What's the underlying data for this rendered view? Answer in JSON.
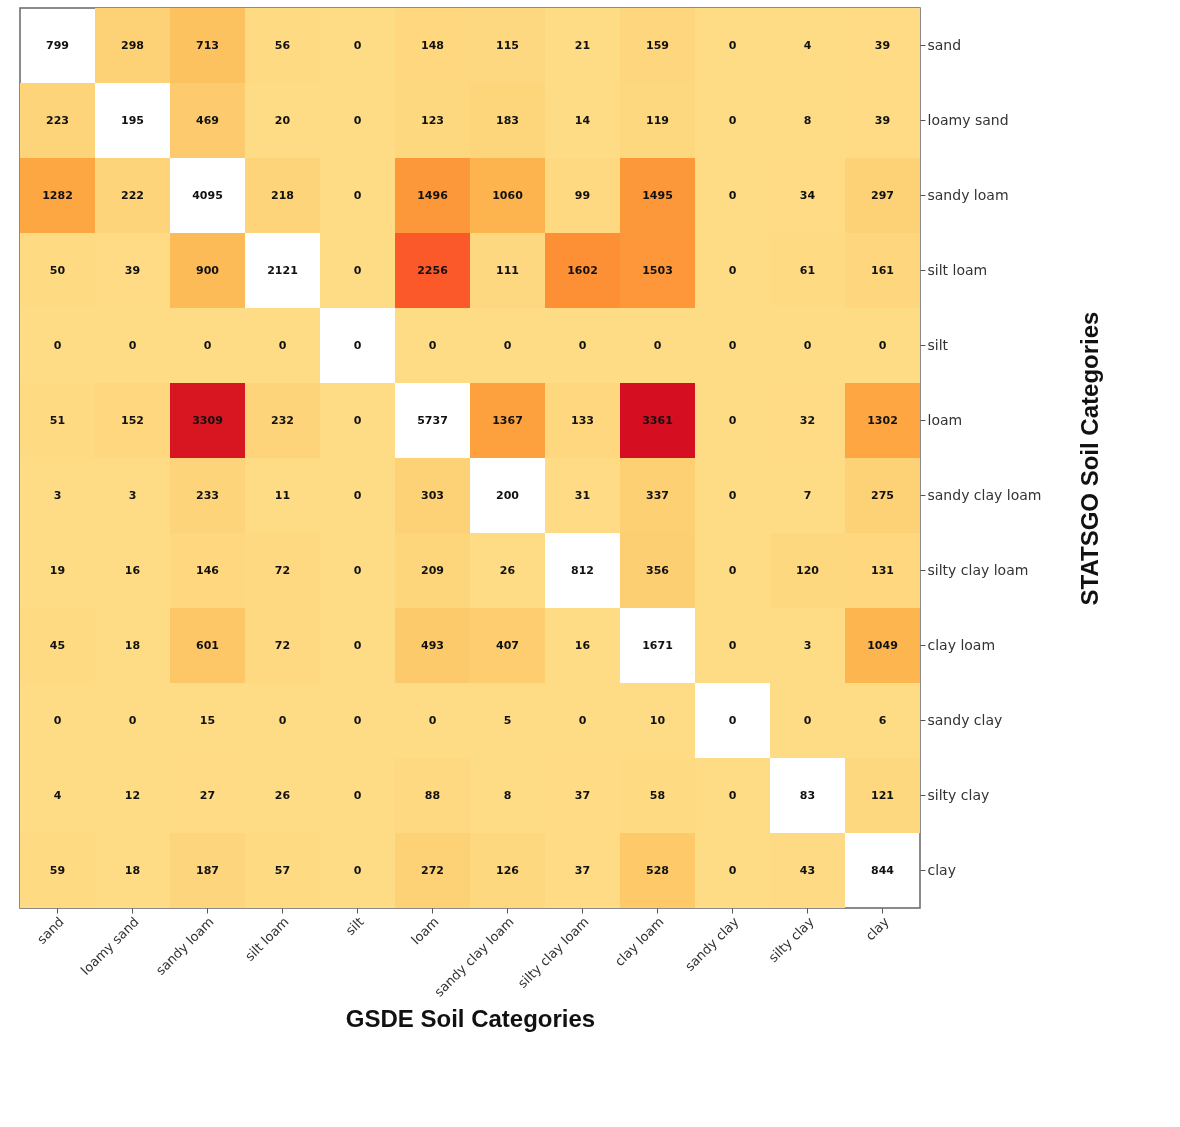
{
  "chart_data": {
    "type": "heatmap",
    "xlabel": "GSDE Soil Categories",
    "ylabel": "STATSGO Soil Categories",
    "grid": false,
    "legend": false,
    "data_labels": true,
    "categories": [
      "sand",
      "loamy sand",
      "sandy loam",
      "silt loam",
      "silt",
      "loam",
      "sandy clay loam",
      "silty clay loam",
      "clay loam",
      "sandy clay",
      "silty clay",
      "clay"
    ],
    "y_categories": [
      "sand",
      "loamy sand",
      "sandy loam",
      "silt loam",
      "silt",
      "loam",
      "sandy clay loam",
      "silty clay loam",
      "clay loam",
      "sandy clay",
      "silty clay",
      "clay"
    ],
    "cells": [
      [
        null,
        298,
        713,
        56,
        0,
        148,
        115,
        21,
        159,
        0,
        4,
        39
      ],
      [
        223,
        null,
        469,
        20,
        0,
        123,
        183,
        14,
        119,
        0,
        8,
        39
      ],
      [
        1282,
        222,
        null,
        218,
        0,
        1496,
        1060,
        99,
        1495,
        0,
        34,
        297
      ],
      [
        50,
        39,
        900,
        null,
        0,
        2256,
        111,
        1602,
        1503,
        0,
        61,
        161
      ],
      [
        0,
        0,
        0,
        0,
        null,
        0,
        0,
        0,
        0,
        0,
        0,
        0
      ],
      [
        51,
        152,
        3309,
        232,
        0,
        null,
        1367,
        133,
        3361,
        0,
        32,
        1302
      ],
      [
        3,
        3,
        233,
        11,
        0,
        303,
        null,
        31,
        337,
        0,
        7,
        275
      ],
      [
        19,
        16,
        146,
        72,
        0,
        209,
        26,
        null,
        356,
        0,
        120,
        131
      ],
      [
        45,
        18,
        601,
        72,
        0,
        493,
        407,
        16,
        null,
        0,
        3,
        1049
      ],
      [
        0,
        0,
        15,
        0,
        0,
        0,
        5,
        0,
        10,
        null,
        0,
        6
      ],
      [
        4,
        12,
        27,
        26,
        0,
        88,
        8,
        37,
        58,
        0,
        null,
        121
      ],
      [
        59,
        18,
        187,
        57,
        0,
        272,
        126,
        37,
        528,
        0,
        43,
        null
      ]
    ],
    "cell_labels": [
      [
        "799",
        "298",
        "713",
        "56",
        "0",
        "148",
        "115",
        "21",
        "159",
        "0",
        "4",
        "39"
      ],
      [
        "223",
        "195",
        "469",
        "20",
        "0",
        "123",
        "183",
        "14",
        "119",
        "0",
        "8",
        "39"
      ],
      [
        "1282",
        "222",
        "4095",
        "218",
        "0",
        "1496",
        "1060",
        "99",
        "1495",
        "0",
        "34",
        "297"
      ],
      [
        "50",
        "39",
        "900",
        "2121",
        "0",
        "2256",
        "111",
        "1602",
        "1503",
        "0",
        "61",
        "161"
      ],
      [
        "0",
        "0",
        "0",
        "0",
        "0",
        "0",
        "0",
        "0",
        "0",
        "0",
        "0",
        "0"
      ],
      [
        "51",
        "152",
        "3309",
        "232",
        "0",
        "5737",
        "1367",
        "133",
        "3361",
        "0",
        "32",
        "1302"
      ],
      [
        "3",
        "3",
        "233",
        "11",
        "0",
        "303",
        "200",
        "31",
        "337",
        "0",
        "7",
        "275"
      ],
      [
        "19",
        "16",
        "146",
        "72",
        "0",
        "209",
        "26",
        "812",
        "356",
        "0",
        "120",
        "131"
      ],
      [
        "45",
        "18",
        "601",
        "72",
        "0",
        "493",
        "407",
        "16",
        "1671",
        "0",
        "3",
        "1049"
      ],
      [
        "0",
        "0",
        "15",
        "0",
        "0",
        "0",
        "5",
        "0",
        "10",
        "0",
        "0",
        "6"
      ],
      [
        "4",
        "12",
        "27",
        "26",
        "0",
        "88",
        "8",
        "37",
        "58",
        "0",
        "83",
        "121"
      ],
      [
        "59",
        "18",
        "187",
        "57",
        "0",
        "272",
        "126",
        "37",
        "528",
        "0",
        "43",
        "844"
      ]
    ]
  }
}
